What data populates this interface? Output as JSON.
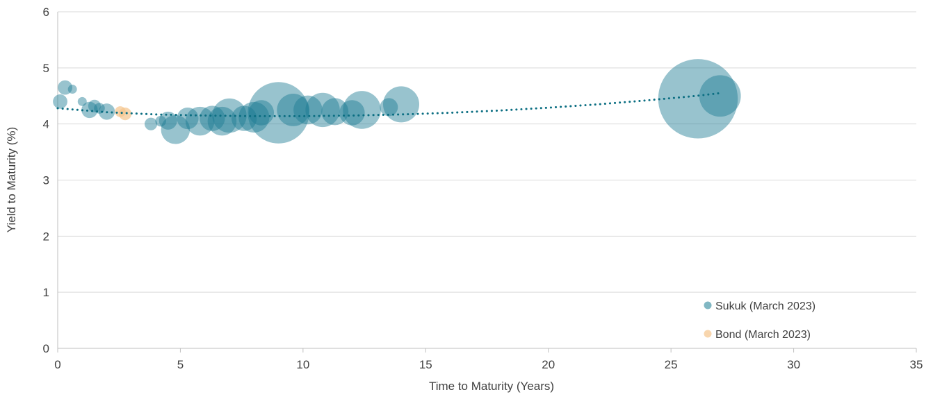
{
  "chart_data": {
    "type": "scatter",
    "title": "",
    "xlabel": "Time to Maturity (Years)",
    "ylabel": "Yield to Maturity (%)",
    "xlim": [
      0,
      35
    ],
    "ylim": [
      0,
      6
    ],
    "x_ticks": [
      "0",
      "5",
      "10",
      "15",
      "20",
      "25",
      "30",
      "35"
    ],
    "y_ticks": [
      "0",
      "1",
      "2",
      "3",
      "4",
      "5",
      "6"
    ],
    "grid": "horizontal",
    "legend_position": "bottom-right",
    "series": [
      {
        "name": "Sukuk (March 2023)",
        "color": "#1a7b92",
        "points": [
          {
            "x": 0.1,
            "y": 4.4,
            "size": 8
          },
          {
            "x": 0.3,
            "y": 4.65,
            "size": 8
          },
          {
            "x": 0.6,
            "y": 4.62,
            "size": 5
          },
          {
            "x": 1.0,
            "y": 4.4,
            "size": 5
          },
          {
            "x": 1.3,
            "y": 4.25,
            "size": 9
          },
          {
            "x": 1.5,
            "y": 4.32,
            "size": 7
          },
          {
            "x": 1.7,
            "y": 4.28,
            "size": 6
          },
          {
            "x": 2.0,
            "y": 4.22,
            "size": 9
          },
          {
            "x": 3.8,
            "y": 4.0,
            "size": 7
          },
          {
            "x": 4.2,
            "y": 4.05,
            "size": 6
          },
          {
            "x": 4.5,
            "y": 4.06,
            "size": 10
          },
          {
            "x": 4.8,
            "y": 3.9,
            "size": 16
          },
          {
            "x": 5.3,
            "y": 4.1,
            "size": 12
          },
          {
            "x": 5.8,
            "y": 4.05,
            "size": 16
          },
          {
            "x": 6.3,
            "y": 4.1,
            "size": 14
          },
          {
            "x": 6.7,
            "y": 4.05,
            "size": 16
          },
          {
            "x": 7.0,
            "y": 4.15,
            "size": 19
          },
          {
            "x": 7.6,
            "y": 4.1,
            "size": 14
          },
          {
            "x": 8.0,
            "y": 4.12,
            "size": 17
          },
          {
            "x": 8.3,
            "y": 4.2,
            "size": 14
          },
          {
            "x": 9.0,
            "y": 4.2,
            "size": 34
          },
          {
            "x": 9.6,
            "y": 4.25,
            "size": 18
          },
          {
            "x": 10.2,
            "y": 4.25,
            "size": 16
          },
          {
            "x": 10.8,
            "y": 4.25,
            "size": 19
          },
          {
            "x": 11.3,
            "y": 4.22,
            "size": 15
          },
          {
            "x": 12.0,
            "y": 4.2,
            "size": 14
          },
          {
            "x": 12.4,
            "y": 4.25,
            "size": 21
          },
          {
            "x": 13.5,
            "y": 4.3,
            "size": 10
          },
          {
            "x": 14.0,
            "y": 4.35,
            "size": 20
          },
          {
            "x": 26.1,
            "y": 4.45,
            "size": 44
          },
          {
            "x": 27.0,
            "y": 4.5,
            "size": 23
          }
        ]
      },
      {
        "name": "Bond (March 2023)",
        "color": "#f5c48c",
        "points": [
          {
            "x": 2.55,
            "y": 4.22,
            "size": 6
          },
          {
            "x": 2.75,
            "y": 4.18,
            "size": 7
          }
        ]
      }
    ],
    "trendline": {
      "series": "Sukuk (March 2023)",
      "style": "dotted",
      "color": "#0b6e82",
      "x": [
        0,
        2,
        4,
        6,
        8,
        10,
        12,
        14,
        16,
        18,
        20,
        22,
        24,
        26,
        27
      ],
      "y": [
        4.28,
        4.21,
        4.17,
        4.15,
        4.14,
        4.14,
        4.15,
        4.17,
        4.2,
        4.24,
        4.29,
        4.35,
        4.42,
        4.5,
        4.55
      ]
    }
  }
}
